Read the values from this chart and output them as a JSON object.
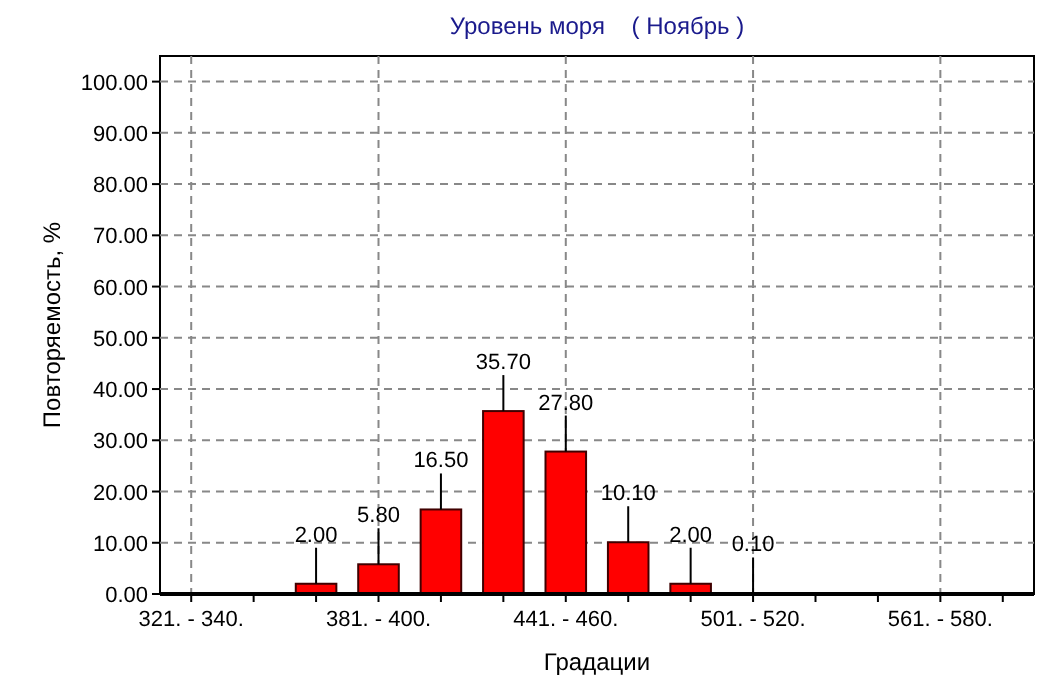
{
  "chart_data": {
    "type": "bar",
    "title": "Уровень моря    ( Ноябрь )",
    "xlabel": "Градации",
    "ylabel": "Повторяемость, %",
    "categories": [
      "321. - 340.",
      null,
      null,
      "381. - 400.",
      null,
      null,
      "441. - 460.",
      null,
      null,
      "501. - 520.",
      null,
      null,
      "561. - 580.",
      null
    ],
    "values": [
      null,
      null,
      2.0,
      5.8,
      16.5,
      35.7,
      27.8,
      10.1,
      2.0,
      0.1,
      null,
      null,
      null,
      null
    ],
    "value_labels": [
      null,
      null,
      "2.00",
      "5.80",
      "16.50",
      "35.70",
      "27.80",
      "10.10",
      "2.00",
      "0.10",
      null,
      null,
      null,
      null
    ],
    "color": "#ff0000",
    "ylim": [
      0,
      105
    ],
    "yticks": [
      {
        "value": 0,
        "label": "0.00"
      },
      {
        "value": 10,
        "label": "10.00"
      },
      {
        "value": 20,
        "label": "20.00"
      },
      {
        "value": 30,
        "label": "30.00"
      },
      {
        "value": 40,
        "label": "40.00"
      },
      {
        "value": 50,
        "label": "50.00"
      },
      {
        "value": 60,
        "label": "60.00"
      },
      {
        "value": 70,
        "label": "70.00"
      },
      {
        "value": 80,
        "label": "80.00"
      },
      {
        "value": 90,
        "label": "90.00"
      },
      {
        "value": 100,
        "label": "100.00"
      }
    ],
    "grid": true
  }
}
